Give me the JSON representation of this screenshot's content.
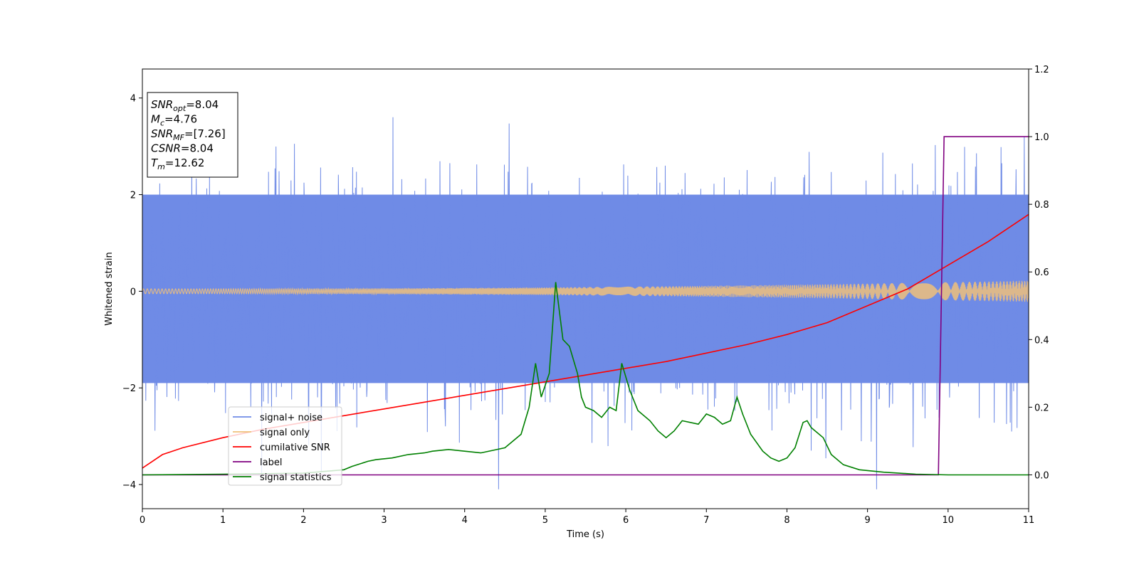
{
  "chart_data": {
    "type": "line",
    "xlabel": "Time (s)",
    "ylabel": "Whitened strain",
    "ylabel_right": "",
    "xlim": [
      0,
      11
    ],
    "ylim": [
      -4.5,
      4.6
    ],
    "ylim_right": [
      -0.1,
      1.2
    ],
    "x_ticks": [
      "0",
      "1",
      "2",
      "3",
      "4",
      "5",
      "6",
      "7",
      "8",
      "9",
      "10",
      "11"
    ],
    "y_ticks": [
      "−4",
      "−2",
      "0",
      "2",
      "4"
    ],
    "y_ticks_right": [
      "0.0",
      "0.2",
      "0.4",
      "0.6",
      "0.8",
      "1.0",
      "1.2"
    ],
    "grid": false,
    "legend_position": "lower-left",
    "info_box": {
      "lines": [
        {
          "sym": "SNR",
          "sub": "opt",
          "val": "=8.04"
        },
        {
          "sym": "M",
          "sub": "c",
          "val": "=4.76"
        },
        {
          "sym": "SNR",
          "sub": "MF",
          "val": "=[7.26]"
        },
        {
          "sym": "CSNR",
          "sub": "",
          "val": "=8.04"
        },
        {
          "sym": "T",
          "sub": "m",
          "val": "=12.62"
        }
      ]
    },
    "series": [
      {
        "name": "signal+ noise",
        "axis": "left",
        "color": "#6f8be6",
        "kind": "noise",
        "envelope_y": [
          -2.3,
          2.4
        ],
        "spike_range_y": [
          -4.1,
          4.2
        ]
      },
      {
        "name": "signal only",
        "axis": "left",
        "color": "#f0c07a",
        "kind": "chirp",
        "amplitude_start": 0.05,
        "amplitude_end": 0.22
      },
      {
        "name": "cumilative SNR",
        "axis": "right",
        "color": "#ff0000",
        "x": [
          0,
          0.25,
          0.5,
          1,
          1.5,
          2,
          2.5,
          3,
          3.5,
          4,
          4.5,
          5,
          5.5,
          6,
          6.5,
          7,
          7.5,
          8,
          8.5,
          9,
          9.5,
          10,
          10.5,
          11
        ],
        "y": [
          0.02,
          0.06,
          0.08,
          0.11,
          0.135,
          0.155,
          0.175,
          0.195,
          0.215,
          0.235,
          0.255,
          0.275,
          0.295,
          0.315,
          0.335,
          0.36,
          0.385,
          0.415,
          0.45,
          0.5,
          0.55,
          0.62,
          0.69,
          0.77
        ]
      },
      {
        "name": "label",
        "axis": "right",
        "color": "#800080",
        "x": [
          0,
          9.88,
          9.95,
          11
        ],
        "y": [
          0,
          0,
          1,
          1
        ]
      },
      {
        "name": "signal statistics",
        "axis": "right",
        "color": "#008000",
        "x": [
          0,
          1,
          2,
          2.5,
          2.6,
          2.8,
          2.9,
          3.1,
          3.3,
          3.5,
          3.6,
          3.8,
          4.0,
          4.2,
          4.5,
          4.7,
          4.8,
          4.88,
          4.95,
          5.05,
          5.13,
          5.22,
          5.3,
          5.4,
          5.45,
          5.5,
          5.6,
          5.7,
          5.8,
          5.88,
          5.95,
          6.05,
          6.15,
          6.3,
          6.4,
          6.5,
          6.6,
          6.7,
          6.9,
          7.0,
          7.1,
          7.2,
          7.3,
          7.38,
          7.45,
          7.55,
          7.7,
          7.8,
          7.9,
          8.0,
          8.1,
          8.2,
          8.25,
          8.3,
          8.45,
          8.55,
          8.7,
          8.9,
          9.2,
          9.6,
          10.0,
          10.5,
          11.0
        ],
        "y": [
          0.0,
          0.002,
          0.005,
          0.015,
          0.025,
          0.04,
          0.045,
          0.05,
          0.06,
          0.065,
          0.07,
          0.075,
          0.07,
          0.065,
          0.08,
          0.12,
          0.2,
          0.33,
          0.23,
          0.3,
          0.57,
          0.4,
          0.38,
          0.3,
          0.23,
          0.2,
          0.19,
          0.17,
          0.2,
          0.19,
          0.33,
          0.25,
          0.19,
          0.16,
          0.13,
          0.11,
          0.13,
          0.16,
          0.15,
          0.18,
          0.17,
          0.15,
          0.16,
          0.23,
          0.18,
          0.12,
          0.07,
          0.05,
          0.04,
          0.05,
          0.08,
          0.155,
          0.16,
          0.14,
          0.11,
          0.06,
          0.03,
          0.015,
          0.008,
          0.002,
          0.0,
          0.0,
          0.0
        ]
      }
    ]
  }
}
